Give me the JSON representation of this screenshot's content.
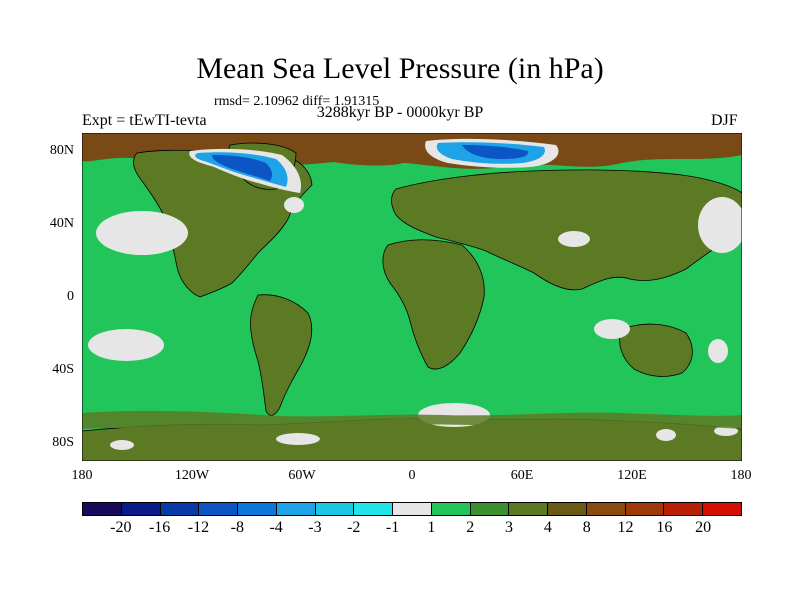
{
  "title": "Mean Sea Level Pressure (in hPa)",
  "stats": "rmsd= 2.10962 diff= 1.91315",
  "subtitle": "3288kyr BP - 0000kyr BP",
  "left_label": "Expt = tEwTI-tevta",
  "right_label": "DJF",
  "lat_labels": [
    "80N",
    "40N",
    "0",
    "40S",
    "80S"
  ],
  "lon_labels": [
    "180",
    "120W",
    "60W",
    "0",
    "60E",
    "120E",
    "180"
  ],
  "colorbar": {
    "colors": [
      "#1a0a5c",
      "#0b1b8a",
      "#0a3aa8",
      "#0b55c4",
      "#0b78d8",
      "#1ea4e6",
      "#1dc6e3",
      "#21e4e8",
      "#e6e6e6",
      "#22c55a",
      "#3c8f2e",
      "#5a7a22",
      "#6a5a16",
      "#8a4a10",
      "#9e3a0a",
      "#b82006",
      "#d40e00"
    ],
    "labels": [
      "-20",
      "-16",
      "-12",
      "-8",
      "-4",
      "-3",
      "-2",
      "-1",
      "1",
      "2",
      "3",
      "4",
      "8",
      "12",
      "16",
      "20"
    ]
  },
  "map_colors": {
    "background": "#22c55a",
    "land": "#5c7a24",
    "high": "#7a4a16",
    "low_light": "#e6e6e6",
    "low_dark": "#0b55c4",
    "low_mid": "#1ea4e6"
  }
}
